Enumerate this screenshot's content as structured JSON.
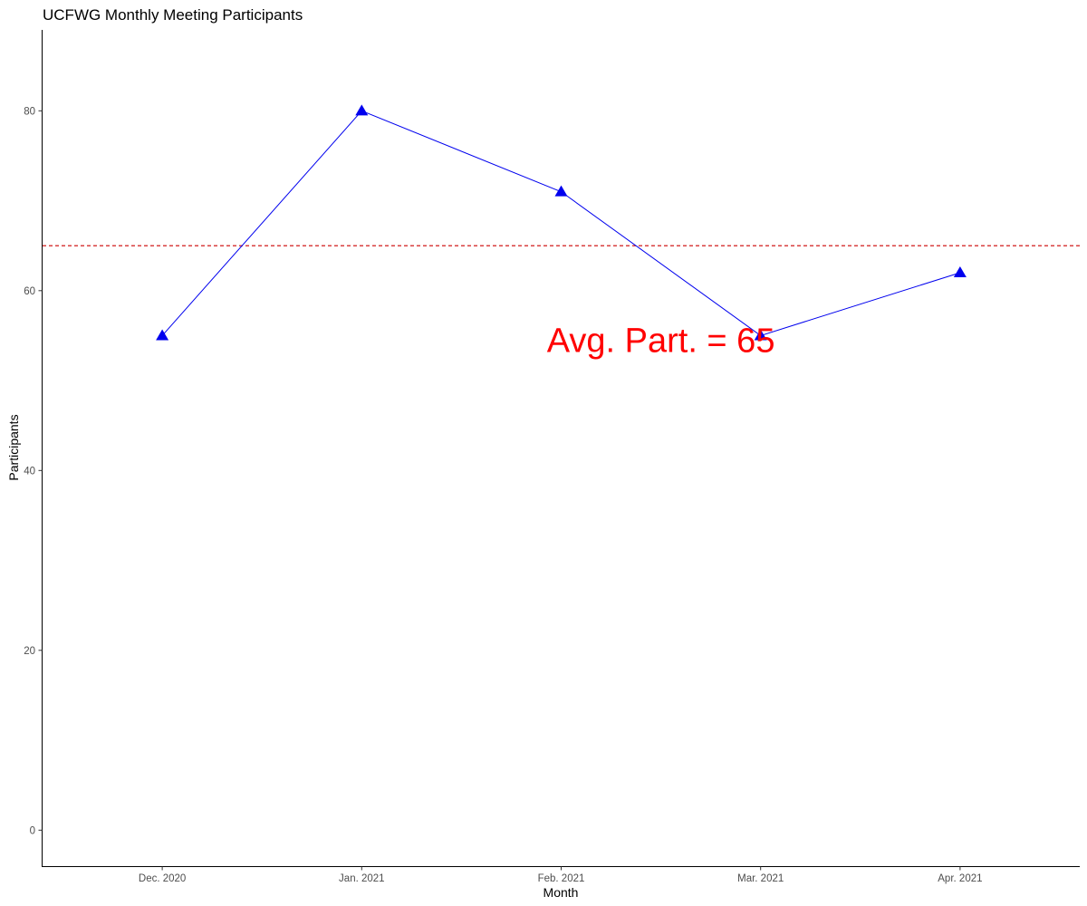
{
  "chart_data": {
    "type": "line",
    "title": "UCFWG Monthly Meeting Participants",
    "xlabel": "Month",
    "ylabel": "Participants",
    "categories": [
      "Dec. 2020",
      "Jan. 2021",
      "Feb. 2021",
      "Mar. 2021",
      "Apr. 2021"
    ],
    "series": [
      {
        "values": [
          55,
          80,
          71,
          55,
          62
        ],
        "color": "#0000ee",
        "marker": "triangle"
      }
    ],
    "yticks": [
      0,
      20,
      40,
      60,
      80
    ],
    "ytick_labels": [
      "0",
      "20",
      "40",
      "60",
      "80"
    ],
    "ylim": [
      -4,
      89
    ],
    "grid": false,
    "reference_line": {
      "value": 65,
      "style": "dashed",
      "color": "#cc0000"
    },
    "annotation": {
      "text": "Avg. Part. = 65",
      "color": "#ff0000",
      "x": 2.5,
      "y": 54.5
    }
  }
}
